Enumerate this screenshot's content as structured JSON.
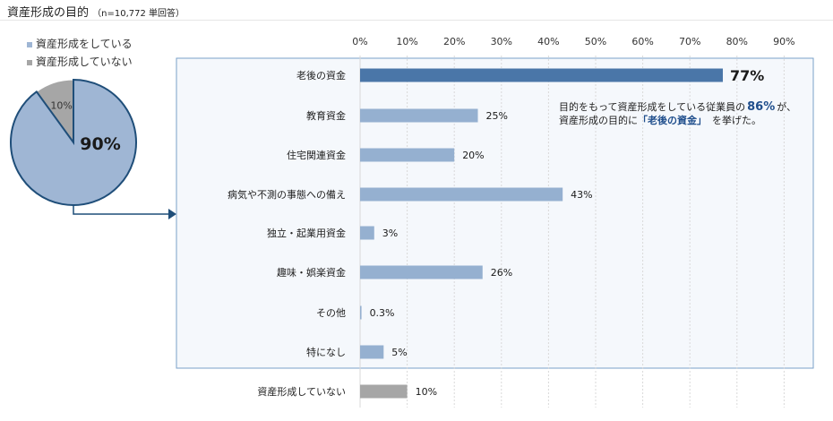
{
  "header": {
    "title": "資産形成の目的",
    "note": "（n=10,772 単回答）"
  },
  "legend": {
    "items": [
      {
        "label": "資産形成をしている",
        "color": "#9fb6d4"
      },
      {
        "label": "資産形成していない",
        "color": "#a6a6a6"
      }
    ]
  },
  "callout": {
    "line1_prefix": "目的をもって資産形成をしている従業員の",
    "line1_pct": "86%",
    "line1_suffix": "が、",
    "line2_prefix": "資産形成の目的に",
    "line2_highlight": "「老後の資金」",
    "line2_suffix": "を挙げた。"
  },
  "colors": {
    "accent_bar": "#4a76a8",
    "bar": "#95b0d0",
    "gray_bar": "#a6a6a6",
    "pie_main": "#9fb6d4",
    "pie_border": "#1f4e79",
    "panel_border": "#7aa1c9",
    "panel_bg": "#f5f8fc"
  },
  "chart_data": [
    {
      "type": "pie",
      "slices": [
        {
          "label": "資産形成をしている",
          "value": 90,
          "label_text": "90%"
        },
        {
          "label": "資産形成していない",
          "value": 10,
          "label_text": "10%"
        }
      ]
    },
    {
      "type": "bar",
      "orientation": "horizontal",
      "xlim": [
        0,
        90
      ],
      "xticks": [
        "0%",
        "10%",
        "20%",
        "30%",
        "40%",
        "50%",
        "60%",
        "70%",
        "80%",
        "90%"
      ],
      "categories": [
        "老後の資金",
        "教育資金",
        "住宅関連資金",
        "病気や不測の事態への備え",
        "独立・起業用資金",
        "趣味・娯楽資金",
        "その他",
        "特になし",
        "資産形成していない"
      ],
      "values": [
        77,
        25,
        20,
        43,
        3,
        26,
        0.3,
        5,
        10
      ],
      "value_labels": [
        "77%",
        "25%",
        "20%",
        "43%",
        "3%",
        "26%",
        "0.3%",
        "5%",
        "10%"
      ],
      "grid": true
    }
  ]
}
